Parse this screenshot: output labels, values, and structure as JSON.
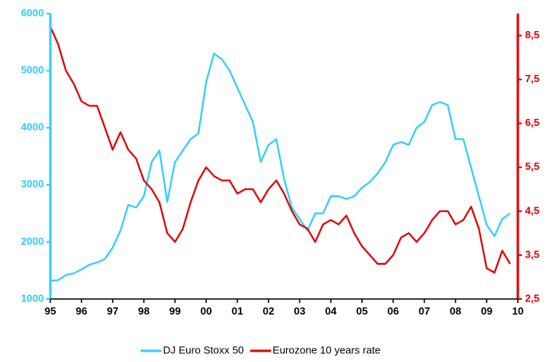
{
  "chart_data": {
    "type": "line",
    "x": [
      1995,
      1995.25,
      1995.5,
      1995.75,
      1996,
      1996.25,
      1996.5,
      1996.75,
      1997,
      1997.25,
      1997.5,
      1997.75,
      1998,
      1998.25,
      1998.5,
      1998.75,
      1999,
      1999.25,
      1999.5,
      1999.75,
      2000,
      2000.25,
      2000.5,
      2000.75,
      2001,
      2001.25,
      2001.5,
      2001.75,
      2002,
      2002.25,
      2002.5,
      2002.75,
      2003,
      2003.25,
      2003.5,
      2003.75,
      2004,
      2004.25,
      2004.5,
      2004.75,
      2005,
      2005.25,
      2005.5,
      2005.75,
      2006,
      2006.25,
      2006.5,
      2006.75,
      2007,
      2007.25,
      2007.5,
      2007.75,
      2008,
      2008.25,
      2008.5,
      2008.75,
      2009,
      2009.25,
      2009.5,
      2009.75
    ],
    "series": [
      {
        "name": "DJ Euro Stoxx 50",
        "color": "#33ccff",
        "values": [
          1320,
          1330,
          1420,
          1450,
          1520,
          1600,
          1640,
          1700,
          1900,
          2200,
          2650,
          2600,
          2800,
          3400,
          3600,
          2700,
          3400,
          3600,
          3800,
          3900,
          4800,
          5300,
          5200,
          5000,
          4700,
          4400,
          4100,
          3400,
          3700,
          3800,
          3100,
          2600,
          2400,
          2200,
          2500,
          2500,
          2800,
          2800,
          2750,
          2800,
          2950,
          3050,
          3200,
          3400,
          3700,
          3750,
          3700,
          4000,
          4100,
          4400,
          4450,
          4400,
          3800,
          3800,
          3300,
          2800,
          2300,
          2100,
          2400,
          2500
        ]
      },
      {
        "name": "Eurozone 10 years rate",
        "color": "#e00000",
        "axis": "y2",
        "values": [
          8.7,
          8.3,
          7.7,
          7.4,
          7.0,
          6.9,
          6.9,
          6.4,
          5.9,
          6.3,
          5.9,
          5.7,
          5.2,
          5.0,
          4.7,
          4.0,
          3.8,
          4.1,
          4.7,
          5.2,
          5.5,
          5.3,
          5.2,
          5.2,
          4.9,
          5.0,
          5.0,
          4.7,
          5.0,
          5.2,
          4.9,
          4.5,
          4.2,
          4.1,
          3.8,
          4.2,
          4.3,
          4.2,
          4.4,
          4.0,
          3.7,
          3.5,
          3.3,
          3.3,
          3.5,
          3.9,
          4.0,
          3.8,
          4.0,
          4.3,
          4.5,
          4.5,
          4.2,
          4.3,
          4.6,
          4.1,
          3.2,
          3.1,
          3.6,
          3.3
        ]
      }
    ],
    "xlim": [
      1995,
      2010
    ],
    "xticks": [
      {
        "value": 1995,
        "label": "95"
      },
      {
        "value": 1996,
        "label": "96"
      },
      {
        "value": 1997,
        "label": "97"
      },
      {
        "value": 1998,
        "label": "98"
      },
      {
        "value": 1999,
        "label": "99"
      },
      {
        "value": 2000,
        "label": "00"
      },
      {
        "value": 2001,
        "label": "01"
      },
      {
        "value": 2002,
        "label": "02"
      },
      {
        "value": 2003,
        "label": "03"
      },
      {
        "value": 2004,
        "label": "04"
      },
      {
        "value": 2005,
        "label": "05"
      },
      {
        "value": 2006,
        "label": "06"
      },
      {
        "value": 2007,
        "label": "07"
      },
      {
        "value": 2008,
        "label": "08"
      },
      {
        "value": 2009,
        "label": "09"
      },
      {
        "value": 2010,
        "label": "10"
      }
    ],
    "ylim": [
      1000,
      6000
    ],
    "yticks": [
      1000,
      2000,
      3000,
      4000,
      5000,
      6000
    ],
    "y2lim": [
      2.5,
      9
    ],
    "y2ticks": [
      {
        "value": 2.5,
        "label": "2,5"
      },
      {
        "value": 3.5,
        "label": "3,5"
      },
      {
        "value": 4.5,
        "label": "4,5"
      },
      {
        "value": 5.5,
        "label": "5,5"
      },
      {
        "value": 6.5,
        "label": "6,5"
      },
      {
        "value": 7.5,
        "label": "7,5"
      },
      {
        "value": 8.5,
        "label": "8,5"
      }
    ],
    "legend": "bottom"
  }
}
